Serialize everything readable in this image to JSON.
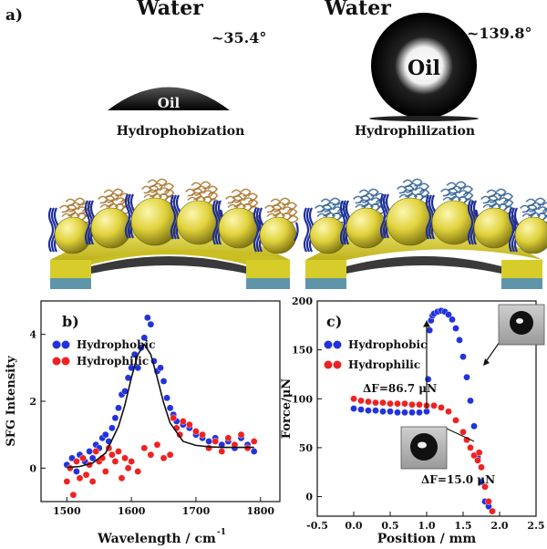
{
  "panel_a": {
    "label": "a)",
    "left": {
      "liquid": "Water",
      "angle": "~35.4°",
      "drop": "Oil",
      "caption": "Hydrophobization"
    },
    "right": {
      "liquid": "Water",
      "angle": "~139.8°",
      "drop": "Oil",
      "caption": "Hydrophilization"
    },
    "colors": {
      "protein_left": "#a7742a",
      "protein_right": "#2f5f92",
      "sphere": "#e0d23c",
      "substrate": "#d7cd2a",
      "substrate_base": "#5f95a8"
    }
  },
  "chart_data": [
    {
      "panel": "b)",
      "type": "scatter",
      "xlabel": "Wavelength / cm",
      "xlabel_sup": "-1",
      "ylabel": "SFG Intensity",
      "xlim": [
        1460,
        1830
      ],
      "ylim": [
        -1,
        5
      ],
      "xticks": [
        1500,
        1600,
        1700,
        1800
      ],
      "yticks": [
        0,
        2,
        4
      ],
      "legend_position": "top-left",
      "series": [
        {
          "name": "Hydrophobic",
          "color": "#2233dd",
          "x": [
            1500,
            1508,
            1515,
            1520,
            1528,
            1535,
            1540,
            1545,
            1550,
            1555,
            1560,
            1565,
            1570,
            1575,
            1580,
            1585,
            1590,
            1595,
            1600,
            1605,
            1610,
            1615,
            1620,
            1625,
            1630,
            1635,
            1640,
            1645,
            1650,
            1655,
            1660,
            1665,
            1670,
            1680,
            1690,
            1700,
            1710,
            1720,
            1730,
            1740,
            1750,
            1760,
            1770,
            1780,
            1790
          ],
          "y": [
            0.1,
            0.3,
            -0.1,
            0.4,
            0.2,
            0.5,
            0.3,
            0.7,
            0.6,
            0.9,
            1.0,
            0.8,
            1.2,
            1.5,
            1.8,
            2.2,
            2.3,
            2.7,
            3.0,
            3.4,
            3.0,
            3.6,
            3.9,
            4.5,
            4.3,
            3.2,
            2.9,
            3.0,
            2.6,
            2.1,
            1.8,
            1.6,
            1.4,
            1.3,
            1.2,
            1.0,
            0.9,
            0.8,
            0.9,
            0.7,
            0.8,
            0.6,
            0.9,
            0.7,
            0.5
          ]
        },
        {
          "name": "Hydrophilic",
          "color": "#ee2222",
          "x": [
            1500,
            1505,
            1510,
            1515,
            1520,
            1525,
            1530,
            1535,
            1540,
            1545,
            1550,
            1555,
            1560,
            1565,
            1570,
            1575,
            1580,
            1585,
            1590,
            1595,
            1600,
            1610,
            1620,
            1630,
            1640,
            1650,
            1660,
            1665,
            1670,
            1675,
            1680,
            1690,
            1700,
            1710,
            1720,
            1730,
            1740,
            1750,
            1760,
            1770,
            1780,
            1790
          ],
          "y": [
            -0.4,
            0.0,
            -0.8,
            0.2,
            -0.3,
            0.3,
            -0.2,
            0.1,
            -0.4,
            0.5,
            0.2,
            0.3,
            -0.1,
            0.6,
            0.4,
            0.2,
            0.5,
            -0.3,
            0.3,
            0.0,
            0.2,
            -0.1,
            0.6,
            0.4,
            0.7,
            0.3,
            0.4,
            1.5,
            1.2,
            1.0,
            1.4,
            1.3,
            1.1,
            1.0,
            0.6,
            0.8,
            0.5,
            0.9,
            0.7,
            1.0,
            0.6,
            0.8
          ]
        },
        {
          "name": "",
          "type": "line",
          "color": "#111111",
          "x": [
            1500,
            1520,
            1540,
            1560,
            1580,
            1590,
            1600,
            1610,
            1620,
            1630,
            1640,
            1650,
            1660,
            1680,
            1700,
            1720,
            1740,
            1760,
            1790
          ],
          "y": [
            0.02,
            0.05,
            0.15,
            0.45,
            1.25,
            1.9,
            2.7,
            3.4,
            3.7,
            3.4,
            2.7,
            1.95,
            1.35,
            0.8,
            0.68,
            0.64,
            0.62,
            0.62,
            0.62
          ]
        }
      ]
    },
    {
      "panel": "c)",
      "type": "scatter",
      "xlabel": "Position / mm",
      "ylabel": "Force/μN",
      "xlim": [
        -0.5,
        2.5
      ],
      "ylim": [
        -20,
        200
      ],
      "xticks": [
        -0.5,
        0.0,
        0.5,
        1.0,
        1.5,
        2.0,
        2.5
      ],
      "yticks": [
        0,
        50,
        100,
        150,
        200
      ],
      "legend_position": "top-left",
      "annotations": [
        "ΔF=86.7 μN",
        "ΔF=15.0 μN"
      ],
      "series": [
        {
          "name": "Hydrophobic",
          "color": "#2233dd",
          "x": [
            0.0,
            0.1,
            0.2,
            0.3,
            0.4,
            0.5,
            0.6,
            0.7,
            0.8,
            0.9,
            1.0,
            1.02,
            1.04,
            1.06,
            1.08,
            1.1,
            1.15,
            1.2,
            1.25,
            1.3,
            1.35,
            1.4,
            1.45,
            1.5,
            1.55,
            1.6,
            1.65,
            1.7,
            1.75,
            1.8,
            1.85,
            1.9
          ],
          "y": [
            90,
            89,
            88,
            88,
            87,
            87,
            86,
            86,
            86,
            86,
            87,
            120,
            170,
            180,
            185,
            187,
            189,
            190,
            189,
            186,
            181,
            172,
            160,
            143,
            122,
            98,
            72,
            40,
            15,
            -5,
            -10,
            -15
          ]
        },
        {
          "name": "Hydrophilic",
          "color": "#ee2222",
          "x": [
            0.0,
            0.1,
            0.2,
            0.3,
            0.4,
            0.5,
            0.6,
            0.7,
            0.8,
            0.9,
            1.0,
            1.1,
            1.2,
            1.3,
            1.4,
            1.5,
            1.55,
            1.6,
            1.65,
            1.7,
            1.72,
            1.75,
            1.8,
            1.85,
            1.9
          ],
          "y": [
            100,
            98,
            97,
            96,
            96,
            95,
            95,
            95,
            94,
            94,
            93,
            93,
            91,
            87,
            78,
            66,
            58,
            50,
            42,
            37,
            45,
            30,
            10,
            -5,
            -15
          ]
        }
      ]
    }
  ]
}
